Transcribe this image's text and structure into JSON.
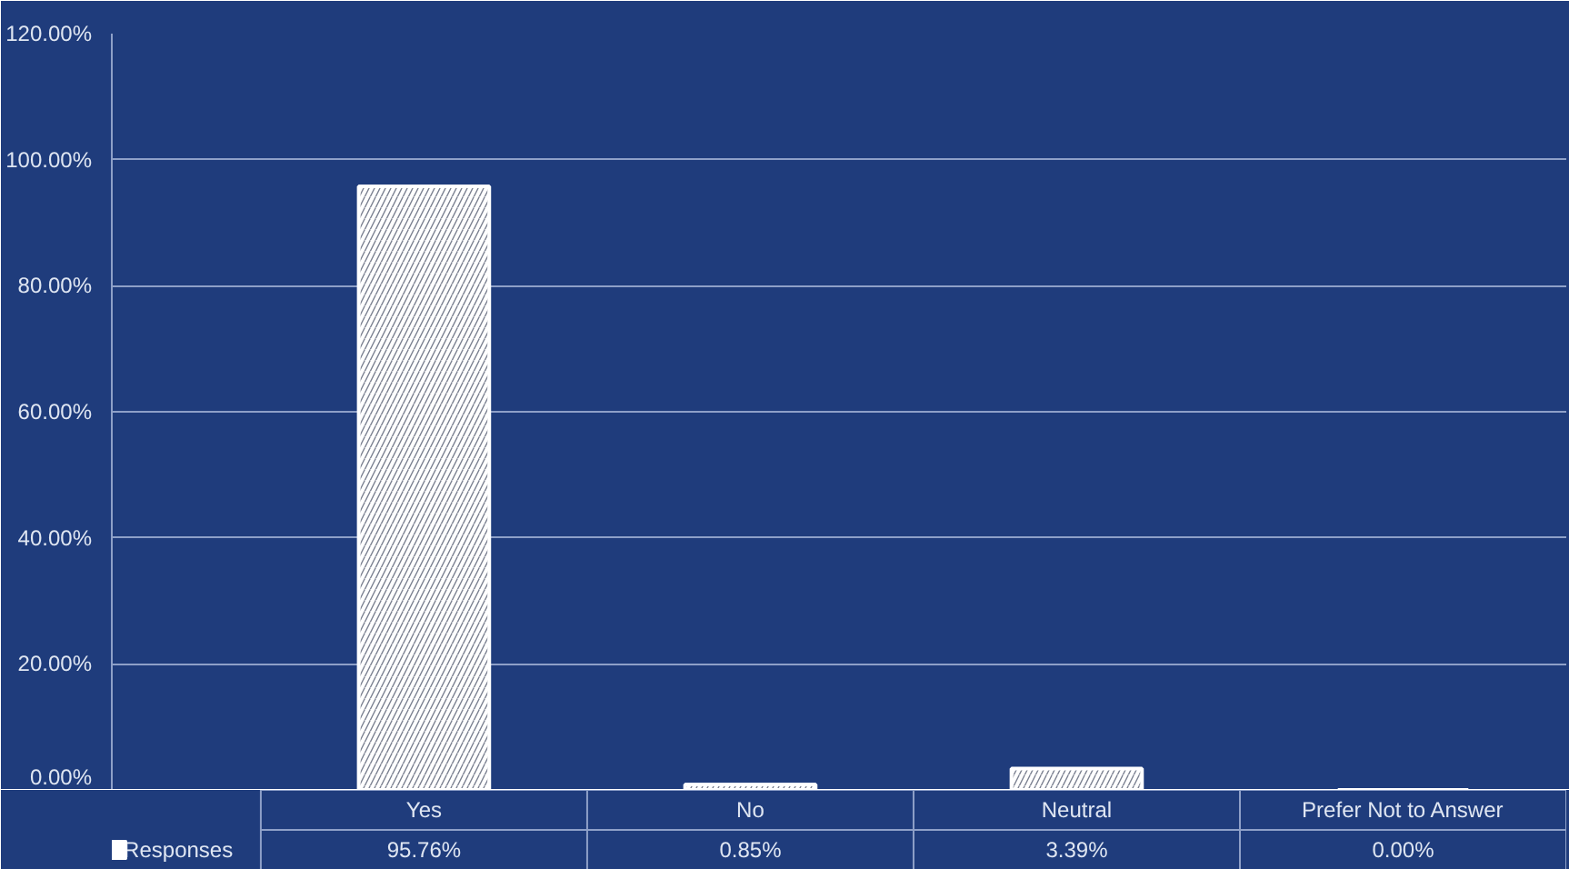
{
  "chart_data": {
    "type": "bar",
    "categories": [
      "Yes",
      "No",
      "Neutral",
      "Prefer Not to Answer"
    ],
    "series": [
      {
        "name": "Responses",
        "color": "#ffffff",
        "values": [
          95.76,
          0.85,
          3.39,
          0.0
        ],
        "value_labels": [
          "95.76%",
          "0.85%",
          "3.39%",
          "0.00%"
        ]
      }
    ],
    "ylim": [
      0,
      120
    ],
    "yticks": [
      {
        "value": 0,
        "label": "0.00%"
      },
      {
        "value": 20,
        "label": "20.00%"
      },
      {
        "value": 40,
        "label": "40.00%"
      },
      {
        "value": 60,
        "label": "60.00%"
      },
      {
        "value": 80,
        "label": "80.00%"
      },
      {
        "value": 100,
        "label": "100.00%"
      },
      {
        "value": 120,
        "label": "120.00%"
      }
    ],
    "grid": "y"
  }
}
